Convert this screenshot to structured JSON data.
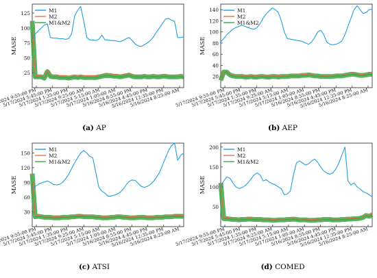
{
  "chart_data": [
    {
      "type": "line",
      "panel_letter": "(a)",
      "panel_title": "AP",
      "ylabel": "MASE",
      "yticks": [
        25,
        50,
        75,
        100,
        125
      ],
      "ylim": [
        0,
        140
      ],
      "x_ticks": [
        "5/17/2024 9:55:00 PM",
        "5/17/2024 5:45:00 PM",
        "5/17/2024 1:35:00 PM",
        "5/17/2024 9:25:00 AM",
        "5/17/2024 5:15:00 AM",
        "5/17/2024 1:05:00 AM",
        "5/16/2024 8:55:00 PM",
        "5/16/2024 4:45:00 PM",
        "5/16/2024 12:35:00 PM",
        "5/16/2024 8:25:00 AM"
      ],
      "x_index": [
        0,
        2,
        4,
        6,
        8,
        10,
        12,
        14,
        16,
        18,
        20,
        22,
        24,
        26,
        28,
        30,
        32,
        34,
        36,
        38,
        40,
        42,
        44,
        46,
        48,
        50,
        52,
        54,
        56,
        58,
        60,
        62,
        64,
        66,
        68,
        70,
        72,
        74,
        76,
        78,
        80,
        82,
        84,
        86,
        88,
        90,
        92,
        94,
        96,
        98,
        100
      ],
      "legend_entries": [
        "M1",
        "M2",
        "M1&M2"
      ],
      "series": [
        {
          "name": "M1",
          "color": "#1f9fe0",
          "values": [
            80,
            90,
            95,
            100,
            105,
            107,
            84,
            83,
            83,
            82,
            82,
            81,
            82,
            90,
            120,
            130,
            136,
            112,
            84,
            80,
            80,
            79,
            81,
            88,
            80,
            80,
            79,
            79,
            78,
            77,
            79,
            82,
            84,
            79,
            73,
            70,
            69,
            72,
            75,
            79,
            85,
            93,
            100,
            108,
            115,
            116,
            113,
            111,
            84,
            84,
            85
          ]
        },
        {
          "name": "M2",
          "color": "#e8704a",
          "values": [
            112,
            20,
            20,
            20,
            18,
            30,
            22,
            21,
            21,
            20,
            20,
            20,
            19,
            20,
            21,
            20,
            21,
            20,
            20,
            20,
            20,
            20,
            21,
            22,
            24,
            24,
            23,
            22,
            22,
            21,
            22,
            23,
            24,
            22,
            21,
            21,
            21,
            22,
            21,
            21,
            22,
            21,
            21,
            22,
            22,
            21,
            21,
            21,
            21,
            22,
            21
          ]
        },
        {
          "name": "M1&M2",
          "color": "#3aa644",
          "values": [
            112,
            18,
            18,
            18,
            16,
            27,
            19,
            18,
            18,
            17,
            17,
            17,
            16,
            17,
            18,
            17,
            18,
            17,
            17,
            17,
            17,
            17,
            18,
            19,
            20,
            20,
            20,
            19,
            19,
            18,
            19,
            20,
            21,
            19,
            18,
            18,
            18,
            19,
            18,
            18,
            19,
            18,
            18,
            19,
            19,
            18,
            18,
            18,
            18,
            19,
            18
          ]
        }
      ]
    },
    {
      "type": "line",
      "panel_letter": "(b)",
      "panel_title": "AEP",
      "ylabel": "MASE",
      "yticks": [
        20,
        40,
        60,
        80,
        100,
        120,
        140
      ],
      "ylim": [
        0,
        150
      ],
      "x_ticks": [
        "5/17/2024 9:55:00 PM",
        "5/17/2024 5:45:00 PM",
        "5/17/2024 1:35:00 PM",
        "5/17/2024 9:25:00 AM",
        "5/17/2024 5:15:00 AM",
        "5/17/2024 1:05:00 AM",
        "5/16/2024 8:55:00 PM",
        "5/16/2024 4:45:00 PM",
        "5/16/2024 12:35:00 PM",
        "5/16/2024 8:25:00 AM"
      ],
      "x_index": [
        0,
        2,
        4,
        6,
        8,
        10,
        12,
        14,
        16,
        18,
        20,
        22,
        24,
        26,
        28,
        30,
        32,
        34,
        36,
        38,
        40,
        42,
        44,
        46,
        48,
        50,
        52,
        54,
        56,
        58,
        60,
        62,
        64,
        66,
        68,
        70,
        72,
        74,
        76,
        78,
        80,
        82,
        84,
        86,
        88,
        90,
        92,
        94,
        96,
        98,
        100
      ],
      "legend_entries": [
        "M1",
        "M2",
        "M1&M2"
      ],
      "series": [
        {
          "name": "M1",
          "color": "#1f9fe0",
          "values": [
            82,
            88,
            95,
            100,
            105,
            108,
            110,
            112,
            110,
            108,
            106,
            105,
            108,
            115,
            125,
            132,
            138,
            143,
            140,
            135,
            120,
            100,
            88,
            87,
            86,
            85,
            84,
            83,
            80,
            78,
            82,
            90,
            100,
            103,
            95,
            82,
            78,
            77,
            78,
            80,
            84,
            95,
            110,
            125,
            140,
            147,
            140,
            133,
            135,
            140,
            141
          ]
        },
        {
          "name": "M2",
          "color": "#e8704a",
          "values": [
            15,
            30,
            30,
            25,
            23,
            22,
            22,
            22,
            21,
            21,
            22,
            21,
            21,
            22,
            22,
            21,
            21,
            22,
            22,
            21,
            22,
            22,
            22,
            23,
            23,
            23,
            23,
            24,
            24,
            25,
            24,
            23,
            23,
            22,
            22,
            22,
            22,
            22,
            23,
            23,
            23,
            24,
            25,
            26,
            26,
            25,
            24,
            24,
            25,
            26,
            26
          ]
        },
        {
          "name": "M1&M2",
          "color": "#3aa644",
          "values": [
            13,
            28,
            28,
            23,
            21,
            20,
            20,
            20,
            19,
            19,
            20,
            19,
            19,
            20,
            20,
            19,
            19,
            20,
            20,
            19,
            20,
            20,
            20,
            21,
            21,
            21,
            21,
            22,
            22,
            23,
            22,
            21,
            21,
            20,
            20,
            20,
            20,
            20,
            21,
            21,
            21,
            22,
            23,
            24,
            24,
            23,
            22,
            22,
            23,
            24,
            24
          ]
        }
      ]
    },
    {
      "type": "line",
      "panel_letter": "(c)",
      "panel_title": "ATSI",
      "ylabel": "MASE",
      "yticks": [
        30,
        60,
        90,
        120,
        150
      ],
      "ylim": [
        0,
        170
      ],
      "x_ticks": [
        "5/17/2024 9:55:00 PM",
        "5/17/2024 5:45:00 PM",
        "5/17/2024 1:35:00 PM",
        "5/17/2024 9:25:00 AM",
        "5/17/2024 5:15:00 AM",
        "5/17/2024 1:05:00 AM",
        "5/16/2024 8:55:00 PM",
        "5/16/2024 4:45:00 PM",
        "5/16/2024 12:35:00 PM",
        "5/16/2024 8:25:00 AM"
      ],
      "x_index": [
        0,
        2,
        4,
        6,
        8,
        10,
        12,
        14,
        16,
        18,
        20,
        22,
        24,
        26,
        28,
        30,
        32,
        34,
        36,
        38,
        40,
        42,
        44,
        46,
        48,
        50,
        52,
        54,
        56,
        58,
        60,
        62,
        64,
        66,
        68,
        70,
        72,
        74,
        76,
        78,
        80,
        82,
        84,
        86,
        88,
        90,
        92,
        94,
        96,
        98,
        100
      ],
      "legend_entries": [
        "M1",
        "M2",
        "M1&M2"
      ],
      "series": [
        {
          "name": "M1",
          "color": "#1f9fe0",
          "values": [
            78,
            82,
            86,
            89,
            91,
            93,
            90,
            86,
            85,
            86,
            90,
            97,
            106,
            118,
            130,
            140,
            150,
            155,
            150,
            143,
            140,
            110,
            80,
            72,
            68,
            62,
            62,
            64,
            66,
            70,
            76,
            85,
            92,
            95,
            94,
            88,
            82,
            80,
            82,
            86,
            92,
            100,
            110,
            125,
            140,
            155,
            165,
            170,
            135,
            145,
            150
          ]
        },
        {
          "name": "M2",
          "color": "#e8704a",
          "values": [
            108,
            22,
            23,
            22,
            21,
            21,
            21,
            20,
            20,
            20,
            21,
            21,
            21,
            22,
            22,
            23,
            23,
            22,
            22,
            22,
            22,
            21,
            21,
            20,
            20,
            20,
            21,
            21,
            22,
            22,
            21,
            21,
            20,
            20,
            20,
            21,
            21,
            21,
            20,
            20,
            20,
            21,
            21,
            21,
            22,
            22,
            22,
            23,
            23,
            23,
            23
          ]
        },
        {
          "name": "M1&M2",
          "color": "#3aa644",
          "values": [
            108,
            20,
            21,
            20,
            19,
            19,
            19,
            18,
            18,
            18,
            19,
            19,
            19,
            20,
            20,
            21,
            21,
            20,
            20,
            20,
            20,
            19,
            19,
            18,
            18,
            18,
            19,
            19,
            20,
            20,
            19,
            19,
            18,
            18,
            18,
            19,
            19,
            19,
            18,
            18,
            18,
            19,
            19,
            19,
            20,
            20,
            20,
            21,
            21,
            21,
            21
          ]
        }
      ]
    },
    {
      "type": "line",
      "panel_letter": "(d)",
      "panel_title": "COMED",
      "ylabel": "MASE",
      "yticks": [
        50,
        100,
        150,
        200
      ],
      "ylim": [
        0,
        210
      ],
      "x_ticks": [
        "5/17/2024 9:55:00 PM",
        "5/17/2024 5:45:00 PM",
        "5/17/2024 1:35:00 PM",
        "5/17/2024 9:25:00 AM",
        "5/17/2024 5:15:00 AM",
        "5/17/2024 1:05:00 AM",
        "5/16/2024 8:55:00 PM",
        "5/16/2024 4:45:00 PM",
        "5/16/2024 12:35:00 PM",
        "5/16/2024 8:25:00 AM"
      ],
      "x_index": [
        0,
        2,
        4,
        6,
        8,
        10,
        12,
        14,
        16,
        18,
        20,
        22,
        24,
        26,
        28,
        30,
        32,
        34,
        36,
        38,
        40,
        42,
        44,
        46,
        48,
        50,
        52,
        54,
        56,
        58,
        60,
        62,
        64,
        66,
        68,
        70,
        72,
        74,
        76,
        78,
        80,
        82,
        84,
        86,
        88,
        90,
        92,
        94,
        96,
        98,
        100
      ],
      "legend_entries": [
        "M1",
        "M2",
        "M1&M2"
      ],
      "series": [
        {
          "name": "M1",
          "color": "#1f9fe0",
          "values": [
            100,
            115,
            125,
            122,
            110,
            100,
            96,
            98,
            103,
            110,
            120,
            130,
            135,
            130,
            115,
            118,
            112,
            108,
            105,
            100,
            95,
            80,
            82,
            90,
            130,
            160,
            165,
            160,
            155,
            158,
            165,
            170,
            162,
            150,
            140,
            135,
            132,
            135,
            145,
            160,
            180,
            200,
            115,
            105,
            110,
            100,
            95,
            88,
            85,
            80,
            75
          ]
        },
        {
          "name": "M2",
          "color": "#e8704a",
          "values": [
            110,
            22,
            22,
            21,
            20,
            20,
            19,
            20,
            20,
            21,
            21,
            20,
            20,
            20,
            19,
            19,
            19,
            18,
            18,
            19,
            19,
            19,
            20,
            20,
            21,
            20,
            19,
            19,
            19,
            18,
            18,
            18,
            19,
            19,
            20,
            20,
            20,
            19,
            19,
            19,
            20,
            20,
            21,
            21,
            22,
            22,
            23,
            25,
            30,
            28,
            35
          ]
        },
        {
          "name": "M1&M2",
          "color": "#3aa644",
          "values": [
            110,
            20,
            20,
            19,
            18,
            18,
            17,
            18,
            18,
            19,
            19,
            18,
            18,
            18,
            17,
            17,
            17,
            16,
            16,
            17,
            17,
            17,
            18,
            18,
            19,
            18,
            17,
            17,
            17,
            16,
            16,
            16,
            17,
            17,
            18,
            18,
            18,
            17,
            17,
            17,
            18,
            18,
            19,
            19,
            20,
            20,
            21,
            23,
            28,
            26,
            30
          ]
        }
      ]
    }
  ]
}
